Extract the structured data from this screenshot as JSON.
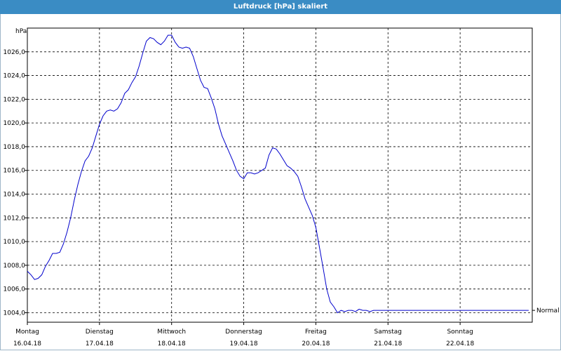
{
  "window": {
    "title": "Luftdruck [hPa] skaliert"
  },
  "chart_data": {
    "type": "line",
    "title": "Luftdruck [hPa] skaliert",
    "ylabel": "hPa",
    "xlabel": "",
    "ylim": [
      1003.2,
      1028.0
    ],
    "xlim": [
      0,
      7
    ],
    "grid": true,
    "y_ticks": [
      "1004,0",
      "1006,0",
      "1008,0",
      "1010,0",
      "1012,0",
      "1014,0",
      "1016,0",
      "1018,0",
      "1020,0",
      "1022,0",
      "1024,0",
      "1026,0"
    ],
    "y_tick_values": [
      1004,
      1006,
      1008,
      1010,
      1012,
      1014,
      1016,
      1018,
      1020,
      1022,
      1024,
      1026
    ],
    "x_ticks": [
      {
        "day": "Montag",
        "date": "16.04.18"
      },
      {
        "day": "Dienstag",
        "date": "17.04.18"
      },
      {
        "day": "Mittwoch",
        "date": "18.04.18"
      },
      {
        "day": "Donnerstag",
        "date": "19.04.18"
      },
      {
        "day": "Freitag",
        "date": "20.04.18"
      },
      {
        "day": "Samstag",
        "date": "21.04.18"
      },
      {
        "day": "Sonntag",
        "date": "22.04.18"
      }
    ],
    "reference_label": "Normal",
    "reference_value": 1004.2,
    "series": [
      {
        "color": "#0000cc",
        "x": [
          0,
          0.05,
          0.1,
          0.15,
          0.2,
          0.25,
          0.3,
          0.35,
          0.4,
          0.45,
          0.5,
          0.55,
          0.6,
          0.65,
          0.7,
          0.75,
          0.8,
          0.85,
          0.9,
          0.95,
          1.0,
          1.05,
          1.1,
          1.15,
          1.2,
          1.25,
          1.3,
          1.35,
          1.4,
          1.45,
          1.5,
          1.55,
          1.6,
          1.65,
          1.7,
          1.75,
          1.8,
          1.85,
          1.9,
          1.95,
          2.0,
          2.05,
          2.1,
          2.15,
          2.2,
          2.25,
          2.3,
          2.35,
          2.4,
          2.45,
          2.5,
          2.55,
          2.6,
          2.65,
          2.7,
          2.75,
          2.8,
          2.85,
          2.9,
          2.95,
          3.0,
          3.05,
          3.1,
          3.15,
          3.2,
          3.25,
          3.3,
          3.35,
          3.4,
          3.45,
          3.5,
          3.55,
          3.6,
          3.65,
          3.7,
          3.75,
          3.8,
          3.85,
          3.9,
          3.95,
          4.0,
          4.05,
          4.1,
          4.15,
          4.2,
          4.25,
          4.3,
          4.35,
          4.4,
          4.45,
          4.5,
          4.55,
          4.6,
          4.65,
          4.7,
          4.75,
          4.8,
          4.85,
          4.9,
          4.95,
          5.0,
          5.05,
          5.1,
          5.15,
          5.2,
          5.25,
          5.3,
          5.35,
          5.4,
          5.45,
          5.5,
          5.55,
          5.6,
          5.65,
          5.7,
          5.75,
          5.8,
          5.85,
          5.9,
          5.95,
          6.0,
          6.05,
          6.1,
          6.15,
          6.2,
          6.25,
          6.3,
          6.35,
          6.4,
          6.45,
          6.5,
          6.55,
          6.6,
          6.65,
          6.7,
          6.75,
          6.8,
          6.85,
          6.9,
          6.95
        ],
        "y": [
          1007.5,
          1007.2,
          1006.8,
          1006.9,
          1007.2,
          1007.9,
          1008.4,
          1009.0,
          1009.0,
          1009.1,
          1009.8,
          1010.8,
          1012.0,
          1013.5,
          1014.8,
          1015.9,
          1016.8,
          1017.2,
          1017.9,
          1018.9,
          1019.9,
          1020.6,
          1021.0,
          1021.1,
          1021.0,
          1021.2,
          1021.7,
          1022.5,
          1022.8,
          1023.4,
          1023.9,
          1024.8,
          1025.9,
          1026.9,
          1027.2,
          1027.1,
          1026.8,
          1026.6,
          1026.9,
          1027.4,
          1027.4,
          1026.8,
          1026.4,
          1026.3,
          1026.4,
          1026.3,
          1025.6,
          1024.6,
          1023.6,
          1023.0,
          1022.9,
          1022.1,
          1021.2,
          1019.9,
          1018.9,
          1018.2,
          1017.5,
          1016.8,
          1016.0,
          1015.5,
          1015.3,
          1015.8,
          1015.8,
          1015.7,
          1015.8,
          1016.0,
          1016.2,
          1017.3,
          1017.9,
          1017.8,
          1017.4,
          1016.9,
          1016.4,
          1016.2,
          1015.9,
          1015.5,
          1014.6,
          1013.6,
          1012.9,
          1012.2,
          1011.2,
          1009.5,
          1007.8,
          1006.0,
          1004.9,
          1004.5,
          1004.0,
          1004.2,
          1004.1,
          1004.2,
          1004.2,
          1004.1,
          1004.3,
          1004.2,
          1004.2,
          1004.1,
          1004.2,
          1004.2,
          1004.2,
          1004.2,
          1004.2,
          1004.2,
          1004.2,
          1004.2,
          1004.2,
          1004.2,
          1004.2,
          1004.2,
          1004.2,
          1004.2,
          1004.2,
          1004.2,
          1004.2,
          1004.2,
          1004.2,
          1004.2,
          1004.2,
          1004.2,
          1004.2,
          1004.2,
          1004.2,
          1004.2,
          1004.2,
          1004.2,
          1004.2,
          1004.2,
          1004.2,
          1004.2,
          1004.2,
          1004.2,
          1004.2,
          1004.2,
          1004.2,
          1004.2,
          1004.2,
          1004.2,
          1004.2,
          1004.2,
          1004.2,
          1004.2
        ]
      }
    ]
  }
}
